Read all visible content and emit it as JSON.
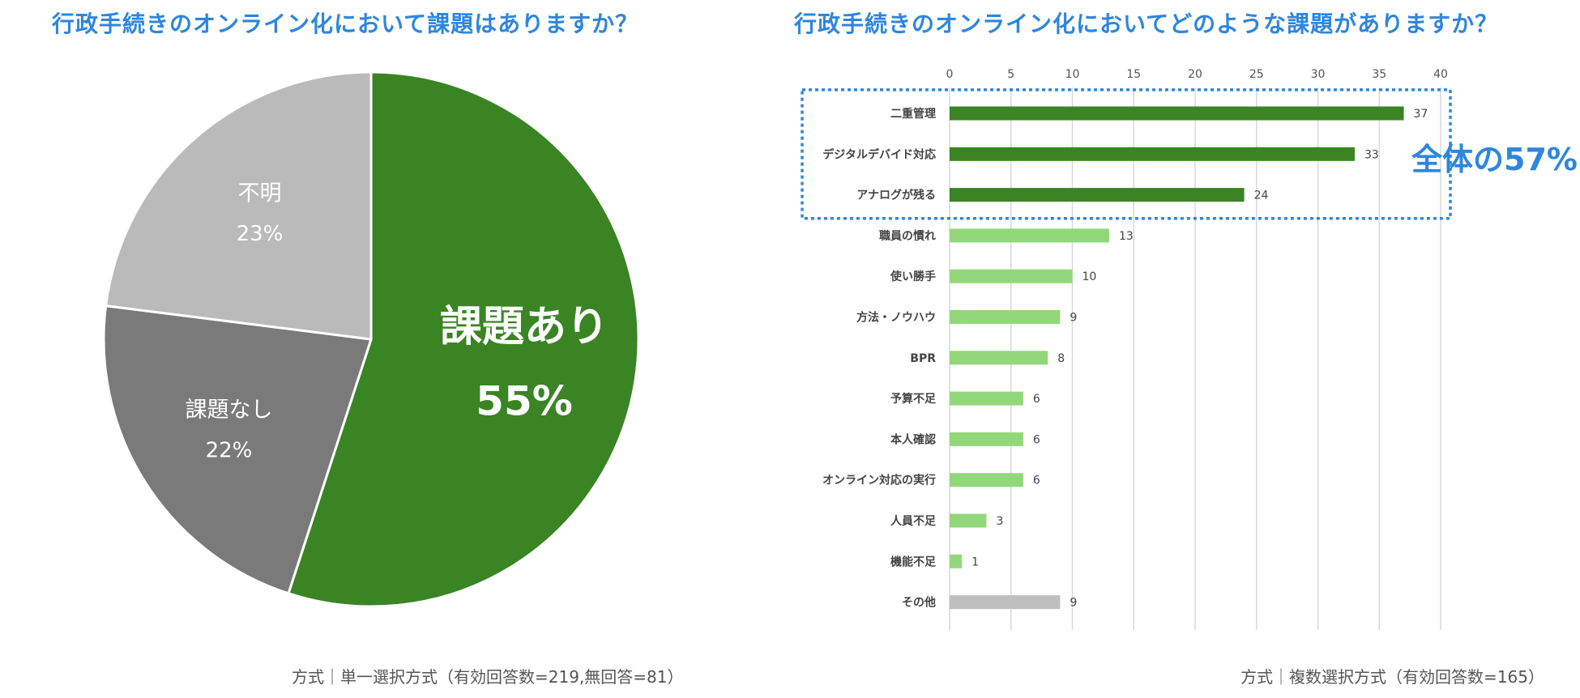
{
  "colors": {
    "title": "#2e86de",
    "highlight_bar": "#3a8424",
    "normal_bar": "#92d87a",
    "other_bar": "#bfbfbf",
    "grid": "#d9d9d9",
    "callout": "#2e86de"
  },
  "chart_data": [
    {
      "type": "pie",
      "title": "行政手続きのオンライン化において課題はありますか？",
      "slices": [
        {
          "label": "課題あり",
          "value": 55,
          "value_label": "55%",
          "color": "#3a8424",
          "text_color": "#ffffff"
        },
        {
          "label": "課題なし",
          "value": 22,
          "value_label": "22%",
          "color": "#7a7a7a",
          "text_color": "#ffffff"
        },
        {
          "label": "不明",
          "value": 23,
          "value_label": "23%",
          "color": "#bababa",
          "text_color": "#ffffff"
        }
      ],
      "start": "top",
      "direction": "clockwise",
      "footnote": "方式｜単一選択方式（有効回答数=219,無回答=81）"
    },
    {
      "type": "bar",
      "orientation": "horizontal",
      "title": "行政手続きのオンライン化においてどのような課題がありますか？",
      "categories": [
        "二重管理",
        "デジタルデバイド対応",
        "アナログが残る",
        "職員の慣れ",
        "使い勝手",
        "方法・ノウハウ",
        "BPR",
        "予算不足",
        "本人確認",
        "オンライン対応の実行",
        "人員不足",
        "機能不足",
        "その他"
      ],
      "values": [
        37,
        33,
        24,
        13,
        10,
        9,
        8,
        6,
        6,
        6,
        3,
        1,
        9
      ],
      "groups": [
        "highlight",
        "highlight",
        "highlight",
        "normal",
        "normal",
        "normal",
        "normal",
        "normal",
        "normal",
        "normal",
        "normal",
        "normal",
        "other"
      ],
      "xlim": [
        0,
        40
      ],
      "xticks": [
        0,
        5,
        10,
        15,
        20,
        25,
        30,
        35,
        40
      ],
      "grid": true,
      "xaxis_position": "top",
      "highlight_box_rows": 3,
      "callout": "全体の57%",
      "footnote": "方式｜複数選択方式（有効回答数=165）"
    }
  ]
}
